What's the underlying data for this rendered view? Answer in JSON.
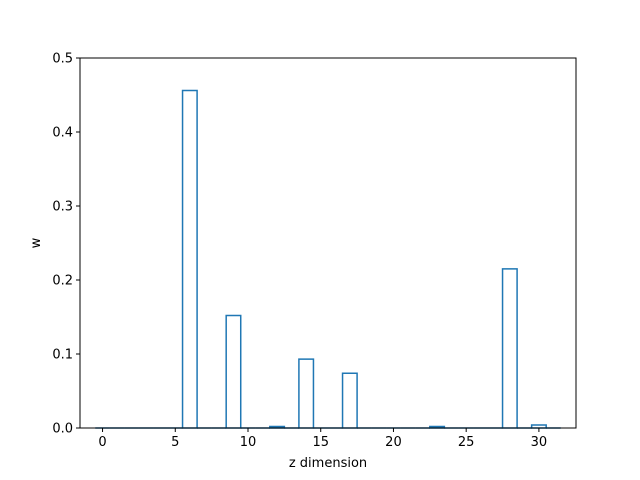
{
  "chart_data": {
    "type": "bar",
    "title": "",
    "xlabel": "z dimension",
    "ylabel": "w",
    "xlim": [
      -1.55,
      32.55
    ],
    "ylim": [
      0,
      0.5
    ],
    "xticks": [
      0,
      5,
      10,
      15,
      20,
      25,
      30
    ],
    "yticks": [
      0.0,
      0.1,
      0.2,
      0.3,
      0.4,
      0.5
    ],
    "xtick_labels": [
      "0",
      "5",
      "10",
      "15",
      "20",
      "25",
      "30"
    ],
    "ytick_labels": [
      "0.0",
      "0.1",
      "0.2",
      "0.3",
      "0.4",
      "0.5"
    ],
    "grid": false,
    "style": "unfilled outline bars",
    "bar_color": "#1f77b4",
    "x": [
      0,
      1,
      2,
      3,
      4,
      5,
      6,
      7,
      8,
      9,
      10,
      11,
      12,
      13,
      14,
      15,
      16,
      17,
      18,
      19,
      20,
      21,
      22,
      23,
      24,
      25,
      26,
      27,
      28,
      29,
      30,
      31
    ],
    "values": [
      0,
      0,
      0,
      0,
      0,
      0,
      0.456,
      0,
      0,
      0.152,
      0,
      0,
      0.002,
      0,
      0.093,
      0,
      0,
      0.074,
      0,
      0,
      0,
      0,
      0,
      0.002,
      0,
      0,
      0,
      0,
      0.215,
      0,
      0.004,
      0
    ]
  }
}
